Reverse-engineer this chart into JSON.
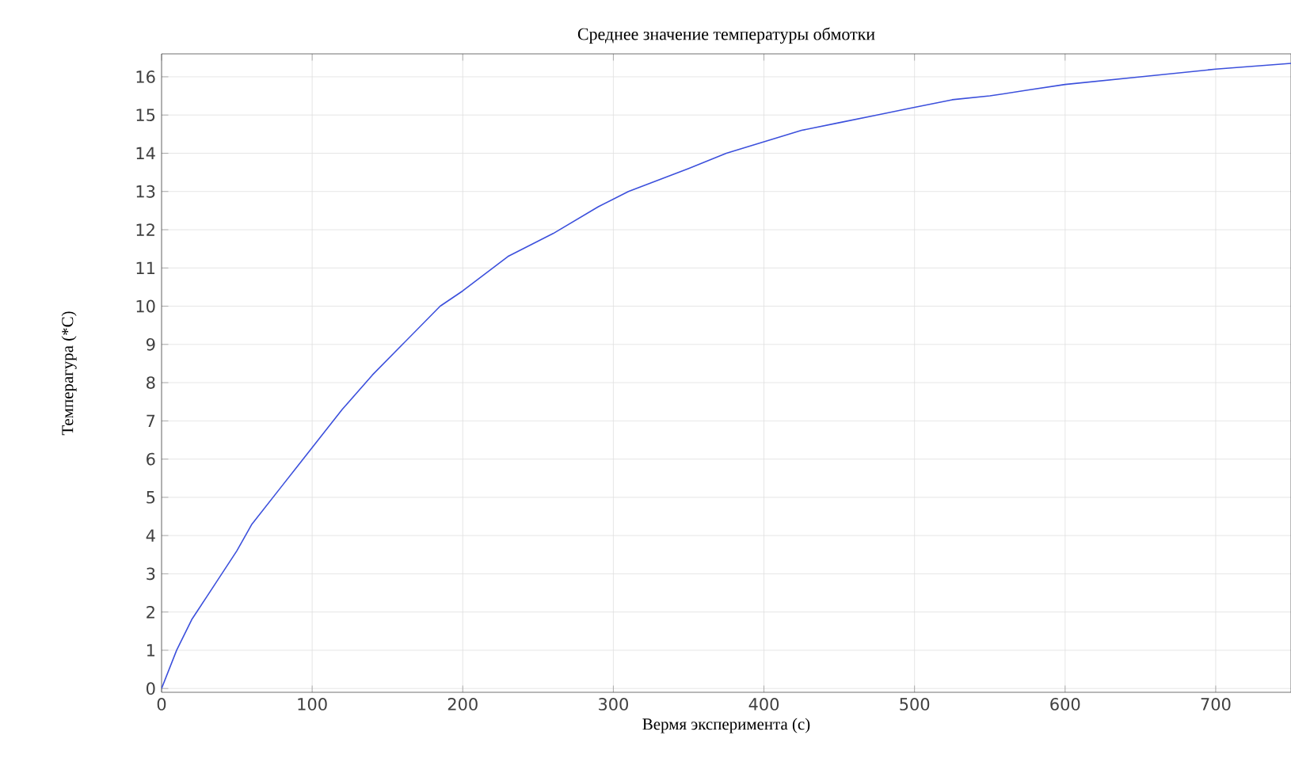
{
  "chart_data": {
    "type": "line",
    "title": "Среднее значение температуры обмотки",
    "xlabel": "Вермя эксперимента (с)",
    "ylabel": "Темперагура (*C)",
    "x": [
      0,
      10,
      20,
      30,
      40,
      50,
      60,
      70,
      80,
      90,
      100,
      120,
      140,
      160,
      185,
      200,
      230,
      260,
      290,
      310,
      330,
      350,
      375,
      400,
      425,
      450,
      475,
      500,
      525,
      550,
      575,
      600,
      650,
      700,
      750
    ],
    "series": [
      {
        "color": "#3c50dc",
        "values": [
          0,
          1,
          1.8,
          2.4,
          3,
          3.6,
          4.3,
          4.8,
          5.3,
          5.8,
          6.3,
          7.3,
          8.2,
          9,
          10,
          10.4,
          11.3,
          11.9,
          12.6,
          13,
          13.3,
          13.6,
          14,
          14.3,
          14.6,
          14.8,
          15,
          15.2,
          15.4,
          15.5,
          15.65,
          15.8,
          16.0,
          16.2,
          16.35
        ]
      }
    ],
    "xlim": [
      0,
      750
    ],
    "ylim": [
      -0.1,
      16.6
    ],
    "xticks": [
      0,
      100,
      200,
      300,
      400,
      500,
      600,
      700
    ],
    "yticks": [
      0,
      1,
      2,
      3,
      4,
      5,
      6,
      7,
      8,
      9,
      10,
      11,
      12,
      13,
      14,
      15,
      16
    ],
    "grid": true,
    "marker": "none",
    "line_style": "solid"
  }
}
